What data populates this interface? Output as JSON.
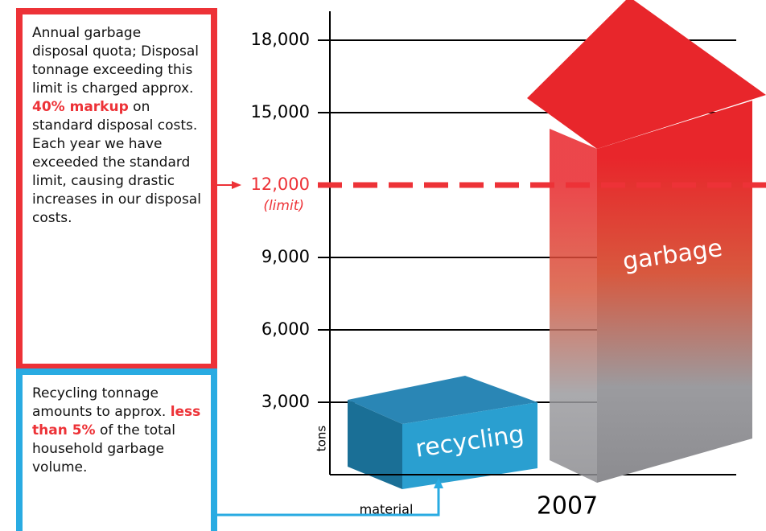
{
  "chart_data": {
    "type": "infographic-bar",
    "categories": [
      "recycling",
      "garbage"
    ],
    "values": [
      2600,
      19800
    ],
    "colors": [
      "#2a9fd0",
      "#e8262b"
    ],
    "x_category": "2007",
    "xlabel": "material",
    "ylabel": "tons",
    "ylim": [
      0,
      19200
    ],
    "yticks": [
      {
        "value": 3000,
        "label": "3,000"
      },
      {
        "value": 6000,
        "label": "6,000"
      },
      {
        "value": 9000,
        "label": "9,000"
      },
      {
        "value": 12000,
        "label": "12,000"
      },
      {
        "value": 15000,
        "label": "15,000"
      },
      {
        "value": 18000,
        "label": "18,000"
      }
    ],
    "grid": true,
    "limit": {
      "value": 12000,
      "note": "(limit)",
      "color": "#ed3237"
    },
    "quota_note": [
      "Annual garbage disposal quota;",
      " Disposal tonnage exceeding this limit is charged approx.",
      "40% markup",
      " on standard disposal costs. Each year we have exceeded the standard limit, causing drastic increases in our disposal costs."
    ],
    "recycling_note": [
      "Recycling tonnage amounts to approx.",
      "less than 5%",
      " of the total household garbage volume."
    ]
  }
}
